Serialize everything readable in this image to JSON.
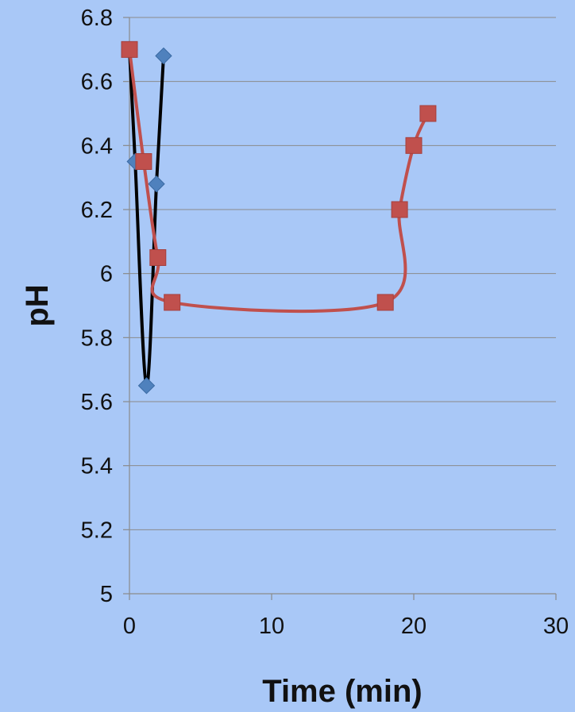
{
  "chart_data": {
    "type": "scatter",
    "title": "",
    "xlabel": "Time (min)",
    "ylabel": "pH",
    "xlim": [
      0,
      30
    ],
    "ylim": [
      5,
      6.8
    ],
    "x_ticks": [
      0,
      10,
      20,
      30
    ],
    "y_ticks": [
      5,
      5.2,
      5.4,
      5.6,
      5.8,
      6,
      6.2,
      6.4,
      6.6,
      6.8
    ],
    "x_tick_labels": [
      "0",
      "10",
      "20",
      "30"
    ],
    "y_tick_labels": [
      "5",
      "5.2",
      "5.4",
      "5.6",
      "5.8",
      "6",
      "6.2",
      "6.4",
      "6.6",
      "6.8"
    ],
    "grid": "horizontal",
    "legend": "none",
    "series": [
      {
        "marker": "diamond",
        "line_color": "#000000",
        "marker_color": "#4f81bd",
        "smooth": true,
        "points": [
          {
            "x": 0,
            "y": 6.7
          },
          {
            "x": 0.4,
            "y": 6.35
          },
          {
            "x": 1.2,
            "y": 5.65
          },
          {
            "x": 1.9,
            "y": 6.28
          },
          {
            "x": 2.4,
            "y": 6.68
          }
        ]
      },
      {
        "marker": "square",
        "line_color": "#c0504d",
        "marker_color": "#c0504d",
        "smooth": true,
        "points": [
          {
            "x": 0,
            "y": 6.7
          },
          {
            "x": 1,
            "y": 6.35
          },
          {
            "x": 2,
            "y": 6.05
          },
          {
            "x": 3,
            "y": 5.91
          },
          {
            "x": 18,
            "y": 5.91
          },
          {
            "x": 19,
            "y": 6.2
          },
          {
            "x": 20,
            "y": 6.4
          },
          {
            "x": 21,
            "y": 6.5
          }
        ]
      }
    ]
  }
}
